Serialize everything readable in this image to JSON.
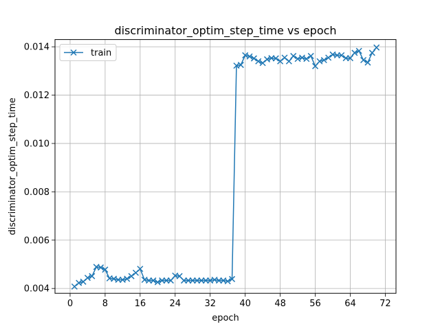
{
  "chart_data": {
    "type": "line",
    "title": "discriminator_optim_step_time vs epoch",
    "xlabel": "epoch",
    "ylabel": "discriminator_optim_step_time",
    "xlim": [
      -3.45,
      74.45
    ],
    "ylim": [
      0.0038,
      0.0143
    ],
    "xticks": [
      0,
      8,
      16,
      24,
      32,
      40,
      48,
      56,
      64,
      72
    ],
    "yticks": [
      0.004,
      0.006,
      0.008,
      0.01,
      0.012,
      0.014
    ],
    "ytick_labels": [
      "0.004",
      "0.006",
      "0.008",
      "0.010",
      "0.012",
      "0.014"
    ],
    "grid": true,
    "legend_position": "upper left",
    "series": [
      {
        "name": "train",
        "color": "#1f77b4",
        "marker": "x",
        "x": [
          1,
          2,
          3,
          4,
          5,
          6,
          7,
          8,
          9,
          10,
          11,
          12,
          13,
          14,
          15,
          16,
          17,
          18,
          19,
          20,
          21,
          22,
          23,
          24,
          25,
          26,
          27,
          28,
          29,
          30,
          31,
          32,
          33,
          34,
          35,
          36,
          37,
          38,
          39,
          40,
          41,
          42,
          43,
          44,
          45,
          46,
          47,
          48,
          49,
          50,
          51,
          52,
          53,
          54,
          55,
          56,
          57,
          58,
          59,
          60,
          61,
          62,
          63,
          64,
          65,
          66,
          67,
          68,
          69,
          70
        ],
        "y": [
          0.00408,
          0.00423,
          0.00428,
          0.00444,
          0.00451,
          0.00489,
          0.00487,
          0.00478,
          0.00442,
          0.0044,
          0.00436,
          0.00436,
          0.0044,
          0.00451,
          0.00465,
          0.00481,
          0.00436,
          0.00433,
          0.00433,
          0.00426,
          0.00433,
          0.00433,
          0.00433,
          0.00453,
          0.00451,
          0.00433,
          0.00433,
          0.00433,
          0.00433,
          0.00433,
          0.00433,
          0.00433,
          0.00436,
          0.00433,
          0.00433,
          0.0043,
          0.00439,
          0.01322,
          0.01325,
          0.01365,
          0.0136,
          0.01352,
          0.0134,
          0.01333,
          0.01348,
          0.01353,
          0.01352,
          0.0134,
          0.01355,
          0.0134,
          0.01362,
          0.0135,
          0.01355,
          0.0135,
          0.01362,
          0.0132,
          0.0134,
          0.01345,
          0.01355,
          0.01368,
          0.01365,
          0.01365,
          0.01353,
          0.01353,
          0.01375,
          0.01383,
          0.01345,
          0.01335,
          0.01375,
          0.01397
        ]
      }
    ]
  }
}
